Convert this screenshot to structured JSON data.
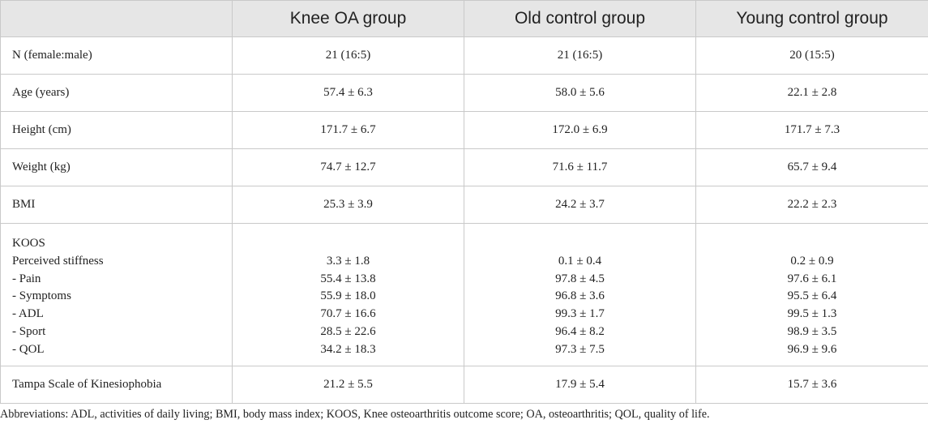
{
  "table": {
    "headers": [
      "",
      "Knee OA group",
      "Old control group",
      "Young control group"
    ],
    "rows": [
      {
        "label": "N (female:male)",
        "values": [
          "21 (16:5)",
          "21 (16:5)",
          "20 (15:5)"
        ]
      },
      {
        "label": "Age (years)",
        "values": [
          "57.4 ± 6.3",
          "58.0 ± 5.6",
          "22.1 ± 2.8"
        ]
      },
      {
        "label": "Height (cm)",
        "values": [
          "171.7 ± 6.7",
          "172.0 ± 6.9",
          "171.7 ± 7.3"
        ]
      },
      {
        "label": "Weight (kg)",
        "values": [
          "74.7 ± 12.7",
          "71.6 ± 11.7",
          "65.7 ± 9.4"
        ]
      },
      {
        "label": "BMI",
        "values": [
          "25.3 ± 3.9",
          "24.2 ± 3.7",
          "22.2 ± 2.3"
        ]
      }
    ],
    "koos": {
      "label": "KOOS",
      "items": [
        {
          "label": "Perceived stiffness",
          "values": [
            "3.3 ± 1.8",
            "0.1 ± 0.4",
            "0.2 ± 0.9"
          ]
        },
        {
          "label": "- Pain",
          "values": [
            "55.4 ± 13.8",
            "97.8 ± 4.5",
            "97.6 ± 6.1"
          ]
        },
        {
          "label": "- Symptoms",
          "values": [
            "55.9 ± 18.0",
            "96.8 ± 3.6",
            "95.5 ± 6.4"
          ]
        },
        {
          "label": "- ADL",
          "values": [
            "70.7 ± 16.6",
            "99.3 ± 1.7",
            "99.5 ± 1.3"
          ]
        },
        {
          "label": "- Sport",
          "values": [
            "28.5 ± 22.6",
            "96.4 ± 8.2",
            "98.9 ± 3.5"
          ]
        },
        {
          "label": "- QOL",
          "values": [
            "34.2 ± 18.3",
            "97.3 ± 7.5",
            "96.9 ± 9.6"
          ]
        }
      ]
    },
    "last_row": {
      "label": "Tampa Scale of Kinesiophobia",
      "values": [
        "21.2 ± 5.5",
        "17.9 ± 5.4",
        "15.7 ± 3.6"
      ]
    }
  },
  "footnote": "Abbreviations: ADL, activities of daily living; BMI, body mass index; KOOS, Knee osteoarthritis outcome score; OA, osteoarthritis; QOL, quality of life."
}
